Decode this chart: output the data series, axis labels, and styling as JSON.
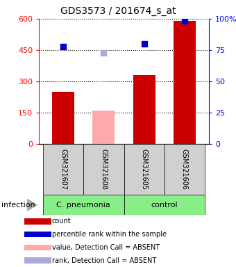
{
  "title": "GDS3573 / 201674_s_at",
  "samples": [
    "GSM321607",
    "GSM321608",
    "GSM321605",
    "GSM321606"
  ],
  "counts": [
    250,
    160,
    330,
    590
  ],
  "count_absent": [
    false,
    true,
    false,
    false
  ],
  "percentile_ranks": [
    78,
    73,
    80,
    98
  ],
  "rank_absent": [
    false,
    true,
    false,
    false
  ],
  "bar_color_present": "#cc0000",
  "bar_color_absent": "#ffaaaa",
  "rank_color_present": "#0000cc",
  "rank_color_absent": "#aaaadd",
  "group_color": "#88ee88",
  "sample_box_color": "#d0d0d0",
  "groups": [
    {
      "label": "C. pneumonia",
      "start": 0,
      "end": 1
    },
    {
      "label": "control",
      "start": 2,
      "end": 3
    }
  ],
  "group_var_label": "infection",
  "ylim_left": [
    0,
    600
  ],
  "ylim_right": [
    0,
    100
  ],
  "yticks_left": [
    0,
    150,
    300,
    450,
    600
  ],
  "ytick_labels_left": [
    "0",
    "150",
    "300",
    "450",
    "600"
  ],
  "yticks_right": [
    0,
    25,
    50,
    75,
    100
  ],
  "ytick_labels_right": [
    "0",
    "25",
    "50",
    "75",
    "100%"
  ],
  "legend_items": [
    {
      "color": "#cc0000",
      "label": "count"
    },
    {
      "color": "#0000cc",
      "label": "percentile rank within the sample"
    },
    {
      "color": "#ffaaaa",
      "label": "value, Detection Call = ABSENT"
    },
    {
      "color": "#aaaadd",
      "label": "rank, Detection Call = ABSENT"
    }
  ],
  "bar_width": 0.55
}
